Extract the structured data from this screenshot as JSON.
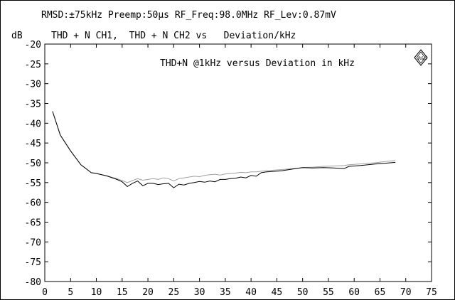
{
  "header": {
    "settings": "RMSD:±75kHz Preemp:50µs RF_Freq:98.0MHz RF_Lev:0.87mV",
    "unit": "dB",
    "traces_label": "THD + N CH1,  THD + N CH2 vs   Deviation/kHz",
    "logo": "R&S"
  },
  "chart_data": {
    "type": "line",
    "title": "THD+N @1kHz versus Deviation in kHz",
    "xlabel": "",
    "ylabel": "dB",
    "xlim": [
      0,
      75
    ],
    "ylim": [
      -80,
      -20
    ],
    "x_ticks": [
      "0",
      "5",
      "10",
      "15",
      "20",
      "25",
      "30",
      "35",
      "40",
      "45",
      "50",
      "55",
      "60",
      "65",
      "70",
      "75"
    ],
    "y_ticks": [
      "-20",
      "-25",
      "-30",
      "-35",
      "-40",
      "-45",
      "-50",
      "-55",
      "-60",
      "-65",
      "-70",
      "-75",
      "-80"
    ],
    "grid": false,
    "series": [
      {
        "name": "THD + N CH1",
        "color": "#000000",
        "x": [
          1.5,
          3,
          5,
          7,
          9,
          10,
          12,
          14,
          15,
          16,
          17,
          18,
          19,
          20,
          21,
          22,
          23,
          24,
          25,
          26,
          27,
          28,
          29,
          30,
          31,
          32,
          33,
          34,
          35,
          36,
          37,
          38,
          39,
          40,
          41,
          42,
          43,
          44,
          45,
          46,
          47,
          48,
          49,
          50,
          52,
          54,
          56,
          58,
          59,
          60,
          62,
          64,
          66,
          68
        ],
        "y": [
          -37,
          -43,
          -47,
          -50.5,
          -52.5,
          -52.7,
          -53.3,
          -54.2,
          -54.8,
          -56,
          -55.2,
          -54.6,
          -55.8,
          -55.2,
          -55.2,
          -55.5,
          -55.3,
          -55.2,
          -56.3,
          -55.4,
          -55.6,
          -55.2,
          -55,
          -54.7,
          -54.9,
          -54.6,
          -54.8,
          -54.2,
          -54.2,
          -54.0,
          -53.9,
          -53.6,
          -53.8,
          -53.2,
          -53.4,
          -52.5,
          -52.3,
          -52.2,
          -52.1,
          -52.0,
          -51.8,
          -51.6,
          -51.4,
          -51.2,
          -51.3,
          -51.2,
          -51.3,
          -51.5,
          -50.9,
          -50.8,
          -50.6,
          -50.3,
          -50.1,
          -49.9
        ]
      },
      {
        "name": "THD + N CH2",
        "color": "#a0a0a0",
        "x": [
          1.5,
          3,
          5,
          7,
          9,
          10,
          12,
          14,
          15,
          16,
          17,
          18,
          19,
          20,
          21,
          22,
          23,
          24,
          25,
          26,
          27,
          28,
          29,
          30,
          31,
          32,
          33,
          34,
          35,
          36,
          37,
          38,
          39,
          40,
          41,
          42,
          43,
          44,
          45,
          46,
          47,
          48,
          49,
          50,
          52,
          54,
          56,
          58,
          59,
          60,
          62,
          64,
          66,
          68
        ],
        "y": [
          -37,
          -43,
          -47,
          -50.5,
          -52.5,
          -52.7,
          -53.3,
          -54.0,
          -54.5,
          -55.0,
          -54.5,
          -54.0,
          -54.4,
          -54.2,
          -54.0,
          -54.2,
          -53.8,
          -54.0,
          -54.6,
          -54.0,
          -53.8,
          -53.6,
          -53.4,
          -53.5,
          -53.2,
          -53.0,
          -52.9,
          -53.1,
          -52.8,
          -52.7,
          -52.6,
          -52.4,
          -52.5,
          -52.3,
          -52.3,
          -52.1,
          -52.0,
          -51.9,
          -51.8,
          -51.7,
          -51.6,
          -51.5,
          -51.4,
          -51.2,
          -51.1,
          -50.9,
          -50.8,
          -50.7,
          -50.5,
          -50.4,
          -50.2,
          -50.0,
          -49.7,
          -49.4
        ]
      }
    ]
  }
}
